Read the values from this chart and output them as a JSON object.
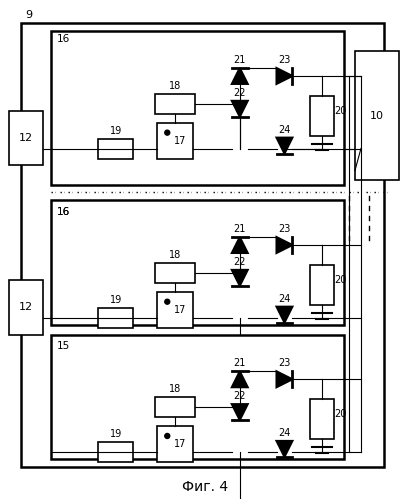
{
  "title": "Фиг. 4",
  "bg_color": "#ffffff",
  "line_color": "#000000",
  "fig_width": 4.11,
  "fig_height": 5.0,
  "dpi": 100
}
